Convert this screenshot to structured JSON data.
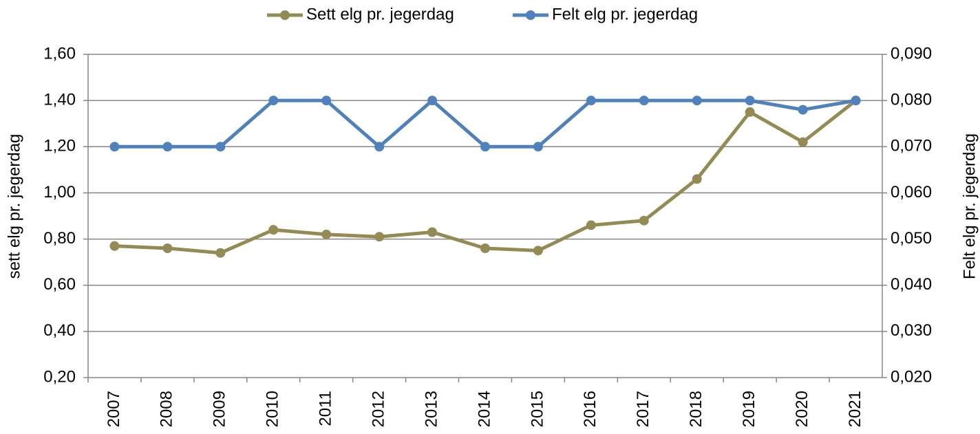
{
  "chart_data": {
    "type": "line",
    "categories": [
      "2007",
      "2008",
      "2009",
      "2010",
      "2011",
      "2012",
      "2013",
      "2014",
      "2015",
      "2016",
      "2017",
      "2018",
      "2019",
      "2020",
      "2021"
    ],
    "series": [
      {
        "name": "Sett elg pr. jegerdag",
        "color": "#948a54",
        "values": [
          0.77,
          0.76,
          0.74,
          0.84,
          0.82,
          0.81,
          0.83,
          0.76,
          0.75,
          0.86,
          0.88,
          1.06,
          1.35,
          1.22,
          1.4
        ]
      },
      {
        "name": "Felt elg pr. jegerdag",
        "color": "#4f81bd",
        "axis": "y2",
        "values": [
          0.07,
          0.07,
          0.07,
          0.08,
          0.08,
          0.07,
          0.08,
          0.07,
          0.07,
          0.08,
          0.08,
          0.08,
          0.08,
          0.078,
          0.08
        ]
      }
    ],
    "ylabel": "sett elg pr. jegerdag",
    "y2label": "Felt elg pr. jegerdag",
    "ylim": [
      0.2,
      1.6
    ],
    "yticks": [
      {
        "value": 0.2,
        "label": "0,20"
      },
      {
        "value": 0.4,
        "label": "0,40"
      },
      {
        "value": 0.6,
        "label": "0,60"
      },
      {
        "value": 0.8,
        "label": "0,80"
      },
      {
        "value": 1.0,
        "label": "1,00"
      },
      {
        "value": 1.2,
        "label": "1,20"
      },
      {
        "value": 1.4,
        "label": "1,40"
      },
      {
        "value": 1.6,
        "label": "1,60"
      }
    ],
    "y2lim": [
      0.02,
      0.09
    ],
    "y2ticks": [
      {
        "value": 0.02,
        "label": "0,020"
      },
      {
        "value": 0.03,
        "label": "0,030"
      },
      {
        "value": 0.04,
        "label": "0,040"
      },
      {
        "value": 0.05,
        "label": "0,050"
      },
      {
        "value": 0.06,
        "label": "0,060"
      },
      {
        "value": 0.07,
        "label": "0,070"
      },
      {
        "value": 0.08,
        "label": "0,080"
      },
      {
        "value": 0.09,
        "label": "0,090"
      }
    ],
    "grid": true,
    "legend": "top"
  }
}
